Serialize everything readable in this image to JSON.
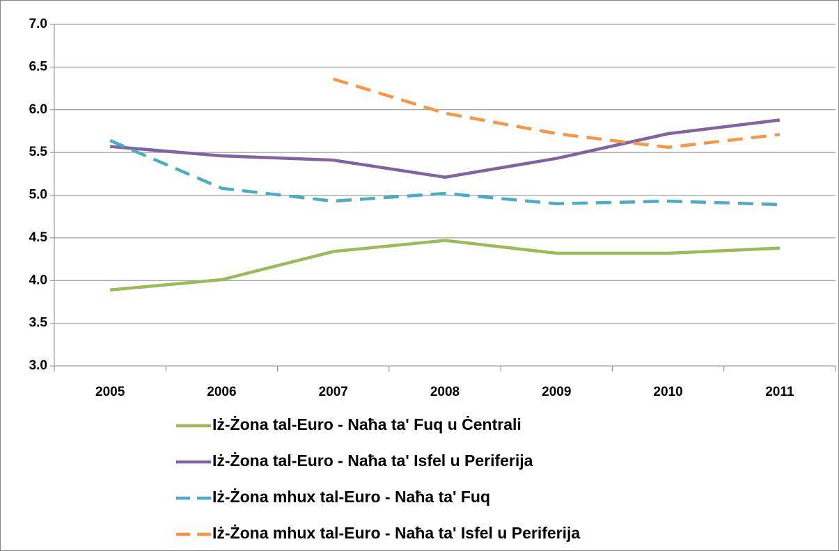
{
  "chart_data": {
    "type": "line",
    "categories": [
      "2005",
      "2006",
      "2007",
      "2008",
      "2009",
      "2010",
      "2011"
    ],
    "series": [
      {
        "name": "Iż-Żona tal-Euro - Naħa ta' Fuq u Ċentrali",
        "color": "#9bbb59",
        "dashed": false,
        "values": [
          3.89,
          4.01,
          4.34,
          4.47,
          4.32,
          4.32,
          4.38
        ]
      },
      {
        "name": "Iż-Żona tal-Euro - Naħa ta' Isfel u Periferija",
        "color": "#8064a2",
        "dashed": false,
        "values": [
          5.57,
          5.46,
          5.41,
          5.21,
          5.43,
          5.72,
          5.88
        ]
      },
      {
        "name": "Iż-Żona mhux tal-Euro - Naħa ta' Fuq",
        "color": "#4bacc6",
        "dashed": true,
        "values": [
          5.64,
          5.08,
          4.93,
          5.02,
          4.9,
          4.93,
          4.89
        ]
      },
      {
        "name": "Iż-Żona mhux tal-Euro - Naħa ta' Isfel u Periferija",
        "color": "#f79646",
        "dashed": true,
        "values": [
          null,
          null,
          6.36,
          5.96,
          5.72,
          5.56,
          5.71
        ]
      }
    ],
    "ylim": [
      3.0,
      7.0
    ],
    "yticks": [
      {
        "value": 3,
        "label": "3.0"
      },
      3.5,
      {
        "value": 4,
        "label": "4.0"
      },
      4.5,
      {
        "value": 5,
        "label": "5.0"
      },
      5.5,
      {
        "value": 6,
        "label": "6.0"
      },
      6.5,
      {
        "value": 7,
        "label": "7.0"
      }
    ],
    "grid": true,
    "legend": "bottom"
  }
}
